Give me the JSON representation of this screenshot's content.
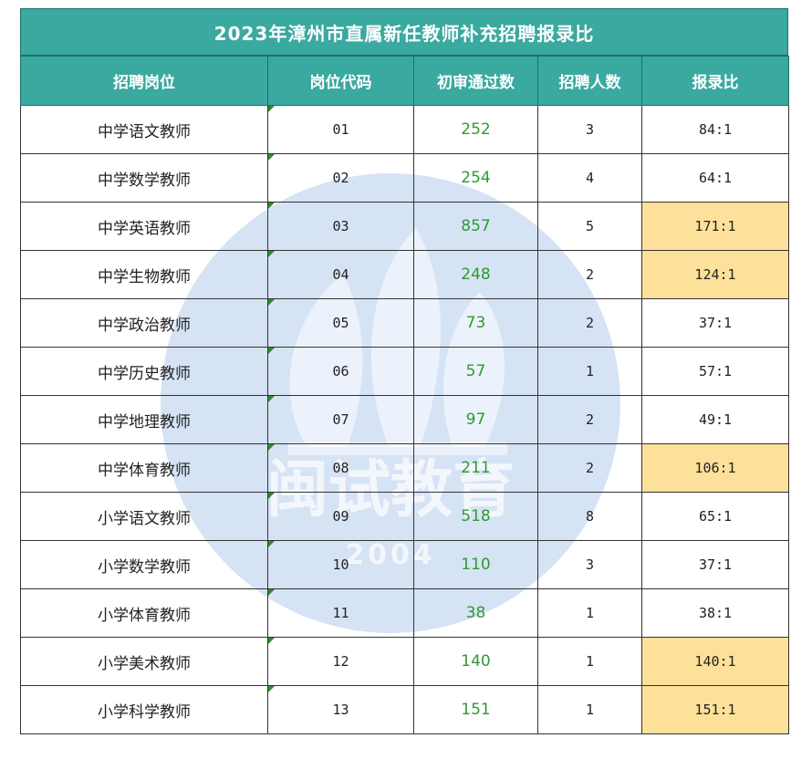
{
  "title": "2023年漳州市直属新任教师补充招聘报录比",
  "headers": [
    "招聘岗位",
    "岗位代码",
    "初审通过数",
    "招聘人数",
    "报录比"
  ],
  "watermark": {
    "text": "闽试教育",
    "year": "2004",
    "color": "#5c8fd6"
  },
  "highlight_color": "#fde19a",
  "rows": [
    {
      "position": "中学语文教师",
      "code": "01",
      "passed": "252",
      "hires": "3",
      "ratio": "84:1",
      "highlight": false
    },
    {
      "position": "中学数学教师",
      "code": "02",
      "passed": "254",
      "hires": "4",
      "ratio": "64:1",
      "highlight": false
    },
    {
      "position": "中学英语教师",
      "code": "03",
      "passed": "857",
      "hires": "5",
      "ratio": "171:1",
      "highlight": true
    },
    {
      "position": "中学生物教师",
      "code": "04",
      "passed": "248",
      "hires": "2",
      "ratio": "124:1",
      "highlight": true
    },
    {
      "position": "中学政治教师",
      "code": "05",
      "passed": "73",
      "hires": "2",
      "ratio": "37:1",
      "highlight": false
    },
    {
      "position": "中学历史教师",
      "code": "06",
      "passed": "57",
      "hires": "1",
      "ratio": "57:1",
      "highlight": false
    },
    {
      "position": "中学地理教师",
      "code": "07",
      "passed": "97",
      "hires": "2",
      "ratio": "49:1",
      "highlight": false
    },
    {
      "position": "中学体育教师",
      "code": "08",
      "passed": "211",
      "hires": "2",
      "ratio": "106:1",
      "highlight": true
    },
    {
      "position": "小学语文教师",
      "code": "09",
      "passed": "518",
      "hires": "8",
      "ratio": "65:1",
      "highlight": false
    },
    {
      "position": "小学数学教师",
      "code": "10",
      "passed": "110",
      "hires": "3",
      "ratio": "37:1",
      "highlight": false
    },
    {
      "position": "小学体育教师",
      "code": "11",
      "passed": "38",
      "hires": "1",
      "ratio": "38:1",
      "highlight": false
    },
    {
      "position": "小学美术教师",
      "code": "12",
      "passed": "140",
      "hires": "1",
      "ratio": "140:1",
      "highlight": true
    },
    {
      "position": "小学科学教师",
      "code": "13",
      "passed": "151",
      "hires": "1",
      "ratio": "151:1",
      "highlight": true
    }
  ]
}
